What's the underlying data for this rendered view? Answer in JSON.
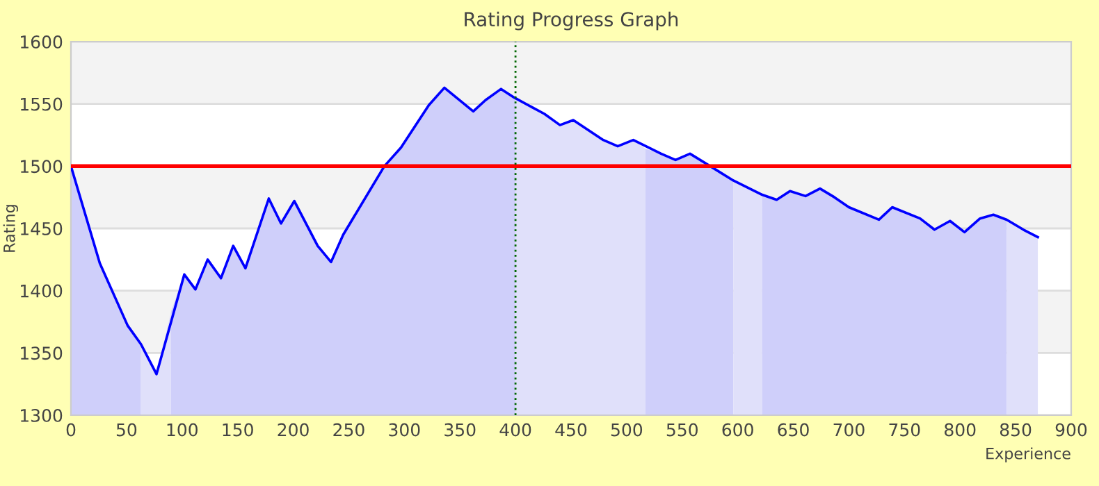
{
  "chart_data": {
    "type": "area",
    "title": "Rating Progress Graph",
    "xlabel": "Experience",
    "ylabel": "Rating",
    "xlim": [
      0,
      900
    ],
    "xticks": [
      0,
      50,
      100,
      150,
      200,
      250,
      300,
      350,
      400,
      450,
      500,
      550,
      600,
      650,
      700,
      750,
      800,
      850,
      900
    ],
    "ylim": [
      1300,
      1600
    ],
    "yticks": [
      1300,
      1350,
      1400,
      1450,
      1500,
      1550,
      1600
    ],
    "grid": "y",
    "legend": false,
    "bands": [
      {
        "axis": "y",
        "from": 1350,
        "to": 1400,
        "color": "#f3f3f3"
      },
      {
        "axis": "y",
        "from": 1450,
        "to": 1500,
        "color": "#f3f3f3"
      },
      {
        "axis": "y",
        "from": 1550,
        "to": 1600,
        "color": "#f3f3f3"
      }
    ],
    "ref_lines": [
      {
        "axis": "y",
        "value": 1500,
        "color": "#ff0000",
        "line_style": "solid"
      },
      {
        "axis": "x",
        "value": 400,
        "color": "#006600",
        "line_style": "dotted"
      }
    ],
    "series": [
      {
        "color": "#cfcffa",
        "x": [
          0,
          26,
          51,
          63
        ],
        "values": [
          1500,
          1422,
          1372,
          1357
        ]
      },
      {
        "type": "area",
        "color": "#e0e0fa",
        "x": [
          63,
          77,
          90
        ],
        "values": [
          1357,
          1333,
          1383
        ]
      },
      {
        "type": "area",
        "color": "#cfcffa",
        "x": [
          90,
          102,
          112,
          123,
          135,
          146,
          157,
          178,
          189,
          201,
          222,
          234,
          245,
          282,
          297,
          322,
          336,
          362,
          373,
          387,
          400
        ],
        "values": [
          1383,
          1413,
          1401,
          1425,
          1410,
          1436,
          1418,
          1474,
          1454,
          1472,
          1436,
          1423,
          1445,
          1500,
          1515,
          1549,
          1563,
          1544,
          1553,
          1562,
          1555
        ]
      },
      {
        "type": "area",
        "color": "#e0e0fa",
        "x": [
          400,
          426,
          440,
          452,
          479,
          492,
          506,
          517
        ],
        "values": [
          1555,
          1542,
          1533,
          1537,
          1521,
          1516,
          1521,
          1514
        ]
      },
      {
        "type": "area",
        "color": "#cfcffa",
        "x": [
          517,
          531,
          544,
          557,
          577,
          596
        ],
        "values": [
          1514,
          1510,
          1505,
          1510,
          1499,
          1489
        ]
      },
      {
        "type": "area",
        "color": "#e0e0fa",
        "x": [
          596,
          622
        ],
        "values": [
          1489,
          1477
        ]
      },
      {
        "type": "area",
        "color": "#cfcffa",
        "x": [
          622,
          635,
          647,
          661,
          674,
          687,
          700,
          727,
          739,
          764,
          777,
          791,
          804,
          818,
          830,
          842
        ],
        "values": [
          1477,
          1473,
          1480,
          1476,
          1482,
          1475,
          1467,
          1457,
          1467,
          1458,
          1449,
          1456,
          1447,
          1458,
          1461,
          1457
        ]
      },
      {
        "type": "area",
        "color": "#e0e0fa",
        "x": [
          842,
          857,
          870
        ],
        "values": [
          1457,
          1449,
          1443
        ]
      },
      {
        "type": "line",
        "color": "#0000ff",
        "marker": "none",
        "x": [
          0,
          26,
          51,
          63,
          77,
          102,
          112,
          123,
          135,
          146,
          157,
          178,
          189,
          201,
          222,
          234,
          245,
          282,
          297,
          322,
          336,
          362,
          373,
          387,
          399,
          426,
          440,
          452,
          479,
          492,
          506,
          531,
          544,
          557,
          577,
          595,
          622,
          635,
          647,
          661,
          674,
          687,
          700,
          727,
          739,
          764,
          777,
          791,
          804,
          818,
          830,
          842,
          857,
          870
        ],
        "values": [
          1500,
          1422,
          1372,
          1357,
          1333,
          1413,
          1401,
          1425,
          1410,
          1436,
          1418,
          1474,
          1454,
          1472,
          1436,
          1423,
          1445,
          1500,
          1515,
          1549,
          1563,
          1544,
          1553,
          1562,
          1555,
          1542,
          1533,
          1537,
          1521,
          1516,
          1521,
          1510,
          1505,
          1510,
          1499,
          1489,
          1477,
          1473,
          1480,
          1476,
          1482,
          1475,
          1467,
          1457,
          1467,
          1458,
          1449,
          1456,
          1447,
          1458,
          1461,
          1457,
          1449,
          1443
        ]
      }
    ]
  }
}
